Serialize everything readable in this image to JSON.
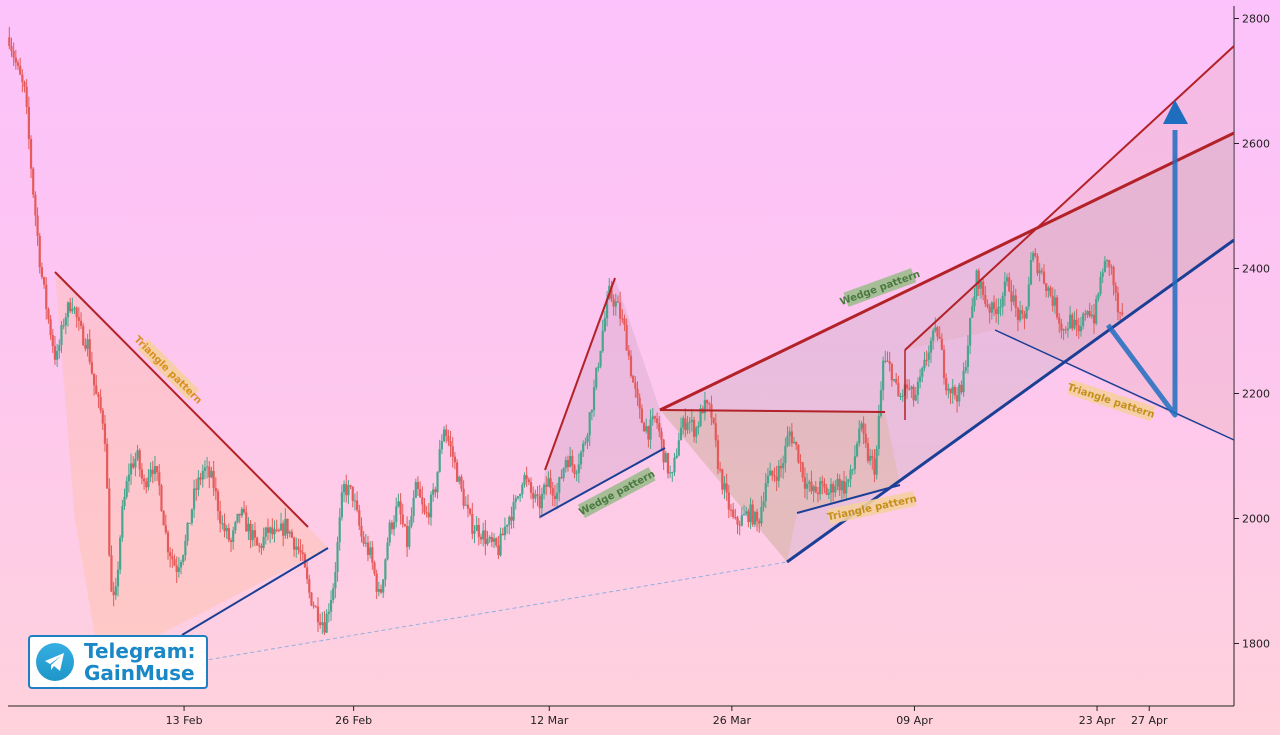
{
  "chart_data": {
    "type": "candlestick",
    "title": "",
    "xlabel": "",
    "ylabel": "",
    "ylim": [
      1700,
      2820
    ],
    "yticks": [
      1800,
      2000,
      2200,
      2400,
      2600,
      2800
    ],
    "xticks": [
      {
        "day": 21,
        "label": "13 Feb"
      },
      {
        "day": 34,
        "label": "26 Feb"
      },
      {
        "day": 49,
        "label": "12 Mar"
      },
      {
        "day": 63,
        "label": "26 Mar"
      },
      {
        "day": 77,
        "label": "09 Apr"
      },
      {
        "day": 91,
        "label": "23 Apr"
      },
      {
        "day": 95,
        "label": "27 Apr"
      }
    ],
    "xrange": [
      7.5,
      101.5
    ],
    "price_path": [
      [
        7.6,
        2770
      ],
      [
        8.2,
        2720
      ],
      [
        8.8,
        2680
      ],
      [
        9.4,
        2530
      ],
      [
        10.0,
        2400
      ],
      [
        10.5,
        2330
      ],
      [
        11.2,
        2250
      ],
      [
        11.8,
        2320
      ],
      [
        12.4,
        2350
      ],
      [
        13.0,
        2300
      ],
      [
        13.6,
        2280
      ],
      [
        14.2,
        2200
      ],
      [
        14.9,
        2150
      ],
      [
        15.4,
        1880
      ],
      [
        15.7,
        1860
      ],
      [
        16.2,
        2000
      ],
      [
        16.8,
        2080
      ],
      [
        17.4,
        2100
      ],
      [
        17.9,
        2050
      ],
      [
        18.5,
        2090
      ],
      [
        19.1,
        2050
      ],
      [
        19.7,
        1960
      ],
      [
        20.4,
        1920
      ],
      [
        21.1,
        1960
      ],
      [
        21.8,
        2040
      ],
      [
        22.5,
        2080
      ],
      [
        23.2,
        2060
      ],
      [
        23.9,
        1990
      ],
      [
        24.6,
        1960
      ],
      [
        25.3,
        2010
      ],
      [
        26.0,
        1980
      ],
      [
        26.7,
        1950
      ],
      [
        27.4,
        1980
      ],
      [
        28.1,
        1970
      ],
      [
        28.8,
        1990
      ],
      [
        29.5,
        1960
      ],
      [
        30.0,
        1940
      ],
      [
        30.6,
        1880
      ],
      [
        31.2,
        1850
      ],
      [
        31.8,
        1830
      ],
      [
        32.5,
        1900
      ],
      [
        33.2,
        2050
      ],
      [
        33.9,
        2040
      ],
      [
        34.6,
        1970
      ],
      [
        35.3,
        1940
      ],
      [
        36.0,
        1870
      ],
      [
        36.7,
        1980
      ],
      [
        37.4,
        2020
      ],
      [
        38.1,
        1960
      ],
      [
        38.8,
        2050
      ],
      [
        39.5,
        2000
      ],
      [
        40.2,
        2040
      ],
      [
        40.9,
        2150
      ],
      [
        41.6,
        2100
      ],
      [
        42.3,
        2040
      ],
      [
        43.0,
        1990
      ],
      [
        43.7,
        1980
      ],
      [
        44.4,
        1960
      ],
      [
        45.1,
        1950
      ],
      [
        45.8,
        2000
      ],
      [
        46.4,
        2020
      ],
      [
        47.0,
        2070
      ],
      [
        47.6,
        2040
      ],
      [
        48.2,
        2020
      ],
      [
        48.9,
        2060
      ],
      [
        49.6,
        2040
      ],
      [
        50.3,
        2100
      ],
      [
        51.0,
        2080
      ],
      [
        51.7,
        2120
      ],
      [
        52.4,
        2200
      ],
      [
        53.1,
        2300
      ],
      [
        53.6,
        2360
      ],
      [
        54.2,
        2340
      ],
      [
        54.8,
        2300
      ],
      [
        55.4,
        2220
      ],
      [
        56.0,
        2160
      ],
      [
        56.6,
        2140
      ],
      [
        57.2,
        2160
      ],
      [
        57.8,
        2100
      ],
      [
        58.4,
        2060
      ],
      [
        59.0,
        2140
      ],
      [
        59.6,
        2160
      ],
      [
        60.2,
        2140
      ],
      [
        60.8,
        2180
      ],
      [
        61.4,
        2170
      ],
      [
        62.0,
        2080
      ],
      [
        62.6,
        2030
      ],
      [
        63.2,
        1990
      ],
      [
        63.8,
        2000
      ],
      [
        64.4,
        2010
      ],
      [
        65.0,
        1990
      ],
      [
        65.6,
        2060
      ],
      [
        66.2,
        2070
      ],
      [
        66.8,
        2080
      ],
      [
        67.4,
        2140
      ],
      [
        68.0,
        2110
      ],
      [
        68.6,
        2060
      ],
      [
        69.2,
        2040
      ],
      [
        69.8,
        2050
      ],
      [
        70.4,
        2040
      ],
      [
        71.0,
        2060
      ],
      [
        71.6,
        2050
      ],
      [
        72.2,
        2070
      ],
      [
        72.8,
        2150
      ],
      [
        73.4,
        2100
      ],
      [
        74.0,
        2080
      ],
      [
        74.6,
        2250
      ],
      [
        75.2,
        2240
      ],
      [
        75.8,
        2190
      ],
      [
        76.4,
        2210
      ],
      [
        77.0,
        2190
      ],
      [
        77.6,
        2230
      ],
      [
        78.2,
        2280
      ],
      [
        78.8,
        2300
      ],
      [
        79.4,
        2220
      ],
      [
        80.0,
        2200
      ],
      [
        80.6,
        2200
      ],
      [
        81.2,
        2300
      ],
      [
        81.8,
        2390
      ],
      [
        82.4,
        2350
      ],
      [
        83.0,
        2330
      ],
      [
        83.6,
        2350
      ],
      [
        84.2,
        2380
      ],
      [
        84.8,
        2330
      ],
      [
        85.4,
        2310
      ],
      [
        86.0,
        2420
      ],
      [
        86.6,
        2400
      ],
      [
        87.2,
        2370
      ],
      [
        87.8,
        2340
      ],
      [
        88.4,
        2300
      ],
      [
        89.0,
        2320
      ],
      [
        89.6,
        2290
      ],
      [
        90.2,
        2340
      ],
      [
        90.8,
        2320
      ],
      [
        91.4,
        2400
      ],
      [
        92.0,
        2410
      ],
      [
        92.6,
        2330
      ],
      [
        93.0,
        2310
      ]
    ],
    "patterns": [
      {
        "label": "Triangle pattern",
        "color": "#d8901a",
        "bg": "#f5cfa0"
      },
      {
        "label": "Wedge pattern",
        "color": "#4a7a40",
        "bg": "#9dbb8e"
      },
      {
        "label": "Triangle pattern",
        "color": "#c4901a",
        "bg": "#f5cfa0"
      },
      {
        "label": "Wedge pattern",
        "color": "#4a7a40",
        "bg": "#9dbb8e"
      },
      {
        "label": "Triangle pattern",
        "color": "#c4901a",
        "bg": "#f5cfa0"
      }
    ],
    "up_color": "#4aa58e",
    "down_color": "#e55a5a",
    "resistance_color": "#b22228",
    "support_color": "#1c3f96",
    "projection_color": "#1f6dbf"
  },
  "brand": {
    "line1": "Telegram:",
    "line2": "GainMuse",
    "icon": "telegram-icon"
  }
}
